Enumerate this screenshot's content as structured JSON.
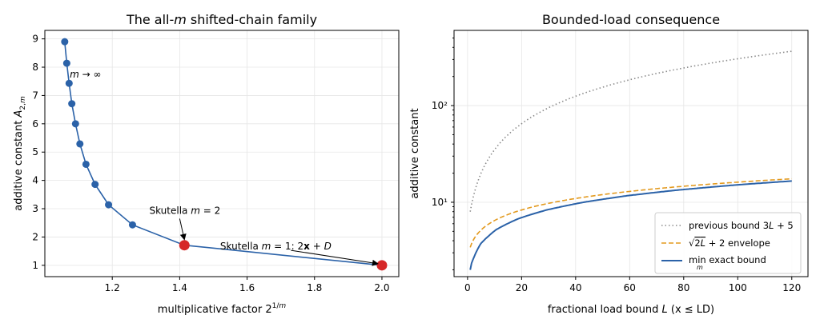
{
  "chart_data": [
    {
      "type": "line",
      "title": "The all-m shifted-chain family",
      "xlabel": "multiplicative factor 2^{1/m}",
      "ylabel": "additive constant A_{2,m}",
      "xlim": [
        1.0,
        2.05
      ],
      "ylim": [
        0.6,
        9.3
      ],
      "xticks": [
        1.2,
        1.4,
        1.6,
        1.8,
        2.0
      ],
      "xtick_labels": [
        "1.2",
        "1.4",
        "1.6",
        "1.8",
        "2.0"
      ],
      "yticks": [
        1,
        2,
        3,
        4,
        5,
        6,
        7,
        8,
        9
      ],
      "ytick_labels": [
        "1",
        "2",
        "3",
        "4",
        "5",
        "6",
        "7",
        "8",
        "9"
      ],
      "grid": true,
      "series": [
        {
          "color": "#2b62a8",
          "x": [
            2.0,
            1.414,
            1.26,
            1.189,
            1.149,
            1.122,
            1.104,
            1.091,
            1.08,
            1.072,
            1.065,
            1.059
          ],
          "y": [
            1.0,
            1.71,
            2.43,
            3.14,
            3.86,
            4.57,
            5.29,
            6.0,
            6.71,
            7.43,
            8.14,
            8.9
          ]
        }
      ],
      "highlights": [
        {
          "x": 1.414,
          "y": 1.71,
          "color": "#d62728"
        },
        {
          "x": 2.0,
          "y": 1.0,
          "color": "#d62728"
        }
      ],
      "annotations": [
        {
          "text": "m → ∞",
          "x": 1.055,
          "y": 7.75
        },
        {
          "text": "Skutella m = 2",
          "x": 1.31,
          "y": 2.93,
          "arrow_to": [
            1.414,
            1.71
          ]
        },
        {
          "text": "Skutella m = 1:  2x + D",
          "x": 1.52,
          "y": 1.68,
          "arrow_to": [
            2.0,
            1.0
          ]
        }
      ]
    },
    {
      "type": "line",
      "title": "Bounded-load consequence",
      "xlabel": "fractional load bound L  (x ≤ LD)",
      "ylabel": "additive constant",
      "xscale": "linear",
      "yscale": "log",
      "xlim": [
        -5,
        126
      ],
      "ylim": [
        1.7,
        600
      ],
      "xticks": [
        0,
        20,
        40,
        60,
        80,
        100,
        120
      ],
      "xtick_labels": [
        "0",
        "20",
        "40",
        "60",
        "80",
        "100",
        "120"
      ],
      "yticks": [
        10,
        100
      ],
      "ytick_labels": [
        "10¹",
        "10²"
      ],
      "grid": true,
      "legend": "lower-right",
      "series": [
        {
          "name": "previous bound 3L + 5",
          "formula": "3L+5",
          "color": "#8a8a8a",
          "style": "dotted"
        },
        {
          "name": "√(2L) + 2 envelope",
          "formula": "sqrt(2L)+2",
          "color": "#e39a1f",
          "style": "dashed"
        },
        {
          "name": "min exact bound",
          "formula": "min_m exact",
          "color": "#2b62a8",
          "style": "solid"
        }
      ],
      "x_range": [
        1,
        120
      ]
    }
  ]
}
